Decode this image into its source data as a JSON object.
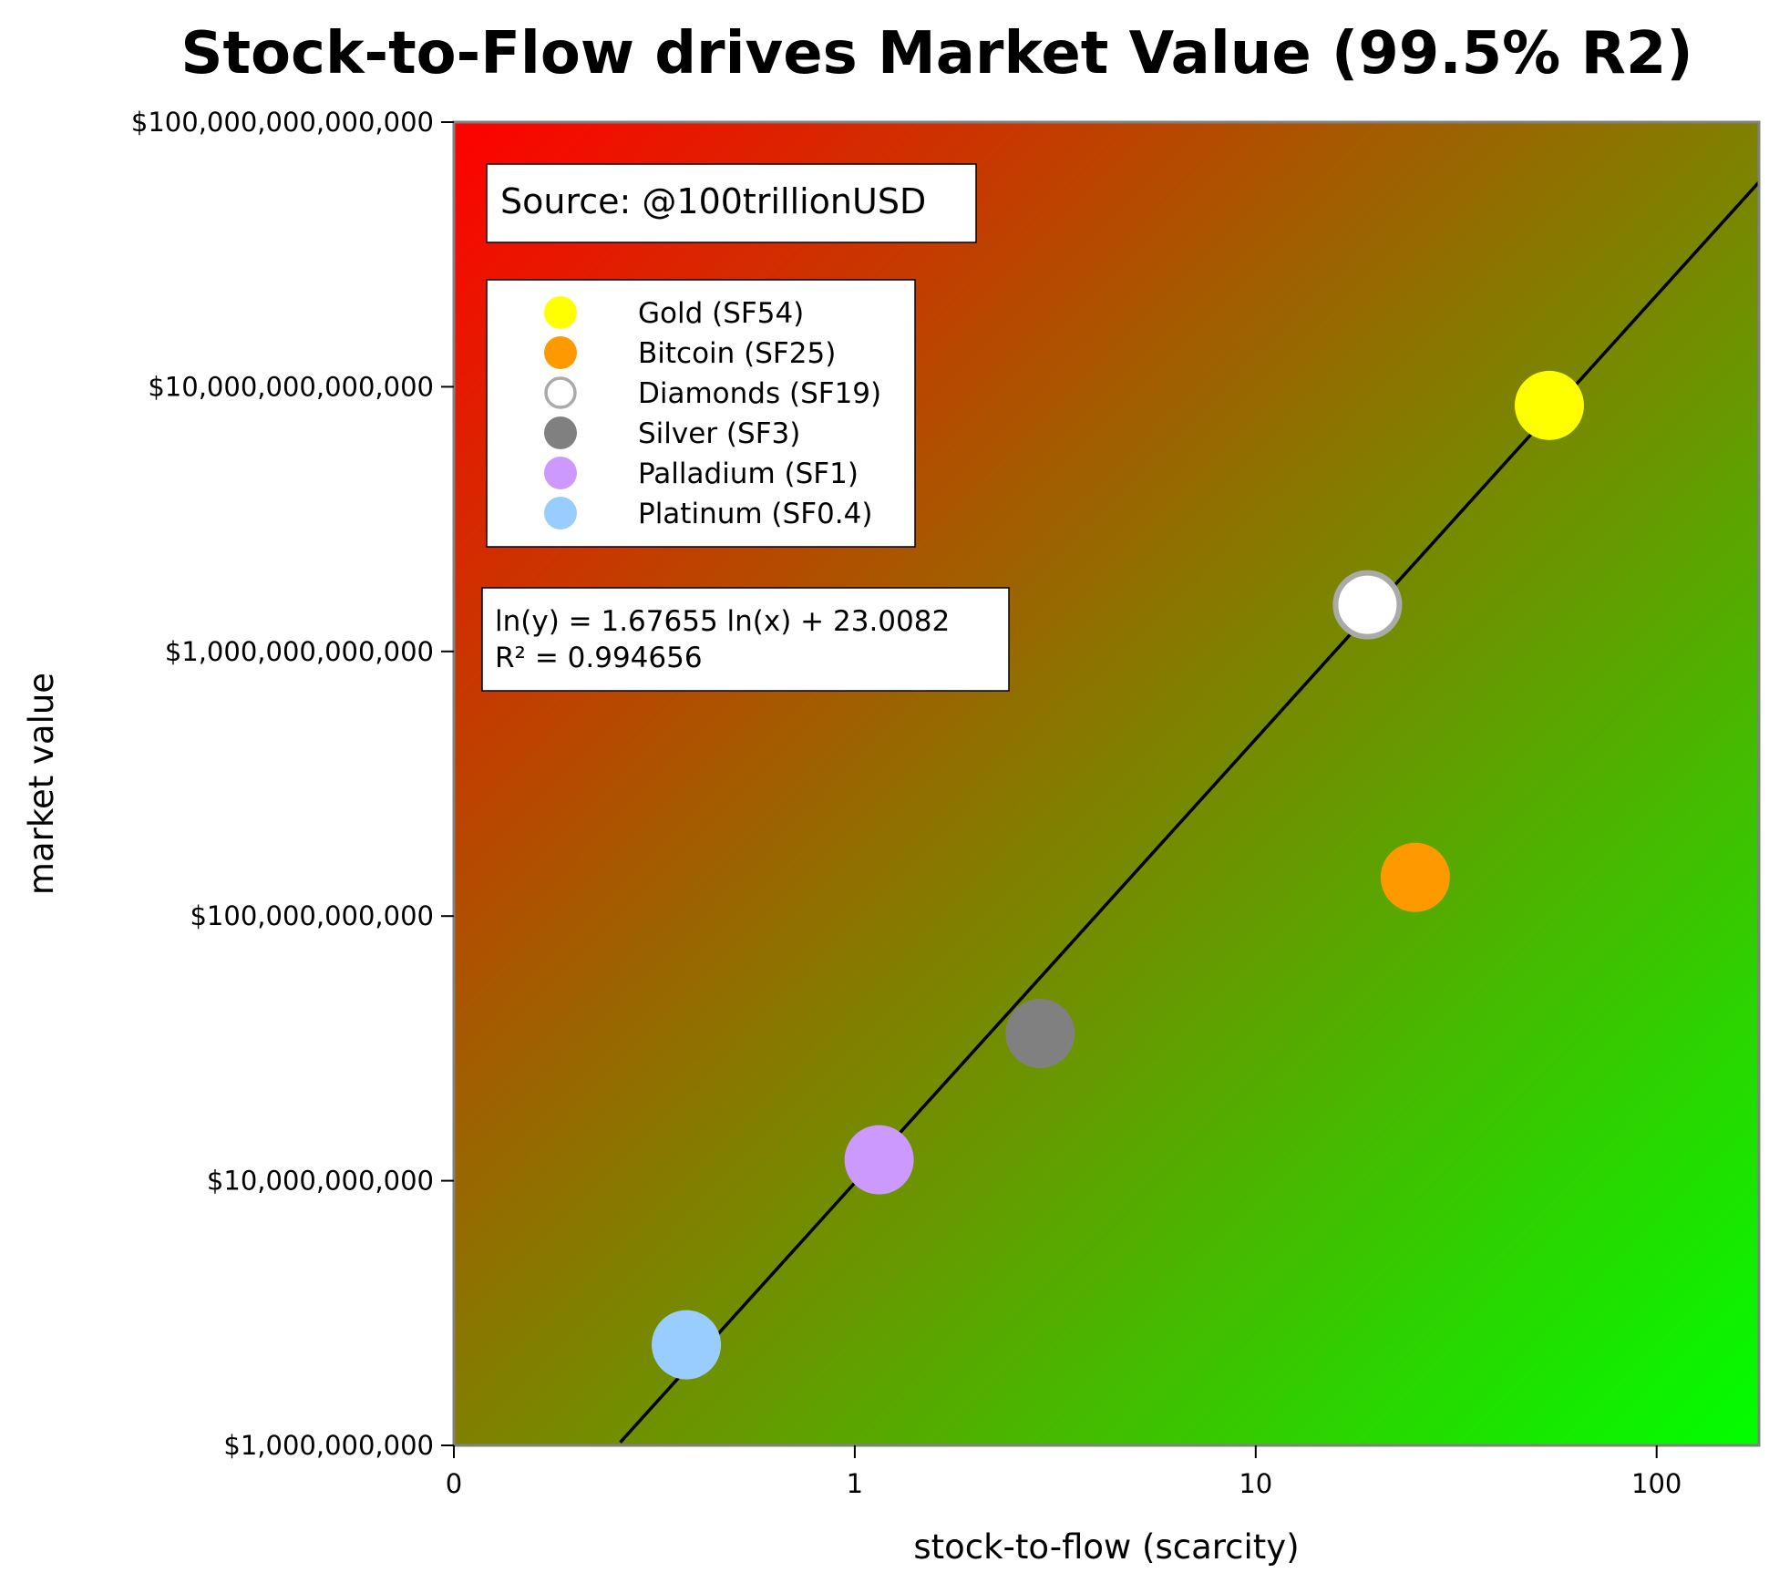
{
  "chart_data": {
    "type": "scatter",
    "title": "Stock-to-Flow drives Market Value (99.5% R2)",
    "xlabel": "stock-to-flow (scarcity)",
    "ylabel": "market value",
    "x_scale": "log",
    "y_scale": "log",
    "xlim": [
      0.1,
      180
    ],
    "ylim": [
      1000000000,
      100000000000000
    ],
    "x_ticks": [
      {
        "value": 0.1,
        "label": "0"
      },
      {
        "value": 1,
        "label": "1"
      },
      {
        "value": 10,
        "label": "10"
      },
      {
        "value": 100,
        "label": "100"
      }
    ],
    "y_ticks": [
      {
        "value": 1000000000,
        "label": "$1,000,000,000"
      },
      {
        "value": 10000000000,
        "label": "$10,000,000,000"
      },
      {
        "value": 100000000000,
        "label": "$100,000,000,000"
      },
      {
        "value": 1000000000000,
        "label": "$1,000,000,000,000"
      },
      {
        "value": 10000000000000,
        "label": "$10,000,000,000,000"
      },
      {
        "value": 100000000000000,
        "label": "$100,000,000,000,000"
      }
    ],
    "source_note": "Source: @100trillionUSD",
    "series": [
      {
        "name": "Gold (SF54)",
        "x": 54,
        "y": 8500000000000,
        "color": "#ffff00",
        "hollow": false
      },
      {
        "name": "Bitcoin (SF25)",
        "x": 25,
        "y": 140000000000,
        "color": "#ff9900",
        "hollow": false
      },
      {
        "name": "Diamonds (SF19)",
        "x": 19,
        "y": 1500000000000,
        "color": "#ffffff",
        "hollow": true
      },
      {
        "name": "Silver (SF3)",
        "x": 2.9,
        "y": 36000000000,
        "color": "#808080",
        "hollow": false
      },
      {
        "name": "Palladium (SF1)",
        "x": 1.15,
        "y": 12000000000,
        "color": "#cc99ff",
        "hollow": false
      },
      {
        "name": "Platinum (SF0.4)",
        "x": 0.38,
        "y": 2400000000,
        "color": "#99ccff",
        "hollow": false
      }
    ],
    "trendline": {
      "equation": "ln(y) = 1.67655 ln(x) + 23.0082",
      "r2_text": "R² = 0.994656",
      "slope": 1.67655,
      "intercept": 23.0082,
      "x_range": [
        0.26,
        180
      ]
    },
    "background_gradient": {
      "top_left": "#ff0000",
      "bottom_right": "#00ff00"
    },
    "grid": false,
    "legend_position": "top-left"
  }
}
